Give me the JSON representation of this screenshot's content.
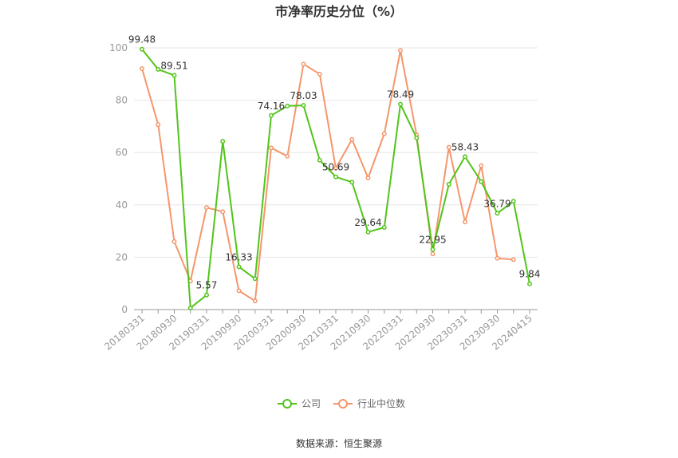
{
  "chart_data": {
    "type": "line",
    "title": "市净率历史分位（%）",
    "x": [
      "20180331",
      "20180630",
      "20180930",
      "20181231",
      "20190331",
      "20190630",
      "20190930",
      "20191231",
      "20200331",
      "20200630",
      "20200930",
      "20201231",
      "20210331",
      "20210630",
      "20210930",
      "20211231",
      "20220331",
      "20220630",
      "20220930",
      "20221231",
      "20230331",
      "20230630",
      "20230930",
      "20231231",
      "20240415"
    ],
    "x_tick_labels": [
      "20180331",
      "20180930",
      "20190331",
      "20190930",
      "20200331",
      "20200930",
      "20210331",
      "20210930",
      "20220331",
      "20220930",
      "20230331",
      "20230930",
      "20240415"
    ],
    "ylim": [
      0,
      100
    ],
    "y_ticks": [
      0,
      20,
      40,
      60,
      80,
      100
    ],
    "grid": true,
    "legend_position": "bottom",
    "series": [
      {
        "name": "公司",
        "color": "#52c41a",
        "values": [
          99.48,
          91.8,
          89.51,
          0.6,
          5.57,
          64.3,
          16.33,
          11.8,
          74.16,
          77.8,
          78.03,
          57.1,
          50.69,
          48.7,
          29.64,
          31.4,
          78.49,
          65.6,
          22.95,
          47.9,
          58.43,
          48.9,
          36.79,
          41.4,
          9.84
        ],
        "labels": {
          "0": "99.48",
          "2": "89.51",
          "4": "5.57",
          "6": "16.33",
          "8": "74.16",
          "10": "78.03",
          "12": "50.69",
          "14": "29.64",
          "16": "78.49",
          "18": "22.95",
          "20": "58.43",
          "22": "36.79",
          "24": "9.84"
        }
      },
      {
        "name": "行业中位数",
        "color": "#f5966b",
        "values": [
          92.1,
          70.7,
          26.0,
          10.9,
          39.0,
          37.4,
          7.2,
          3.3,
          61.8,
          58.6,
          93.8,
          90.0,
          54.0,
          65.0,
          50.3,
          67.2,
          99.0,
          66.7,
          21.3,
          62.0,
          33.5,
          55.0,
          19.6,
          19.1,
          null
        ]
      }
    ]
  },
  "source": "数据来源：恒生聚源"
}
